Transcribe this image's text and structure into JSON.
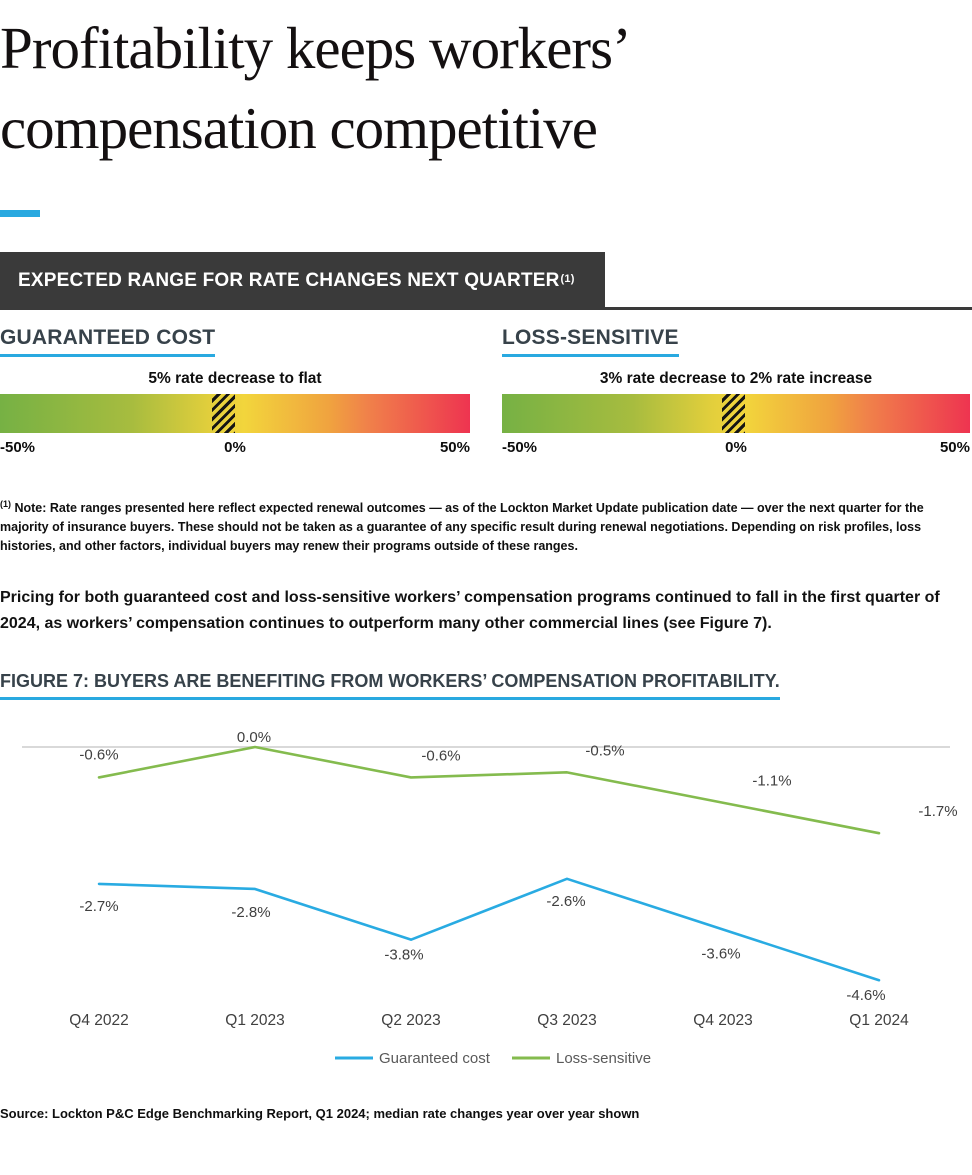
{
  "page": {
    "title": {
      "line1": "Profitability keeps workers’",
      "line2": "compensation competitive"
    }
  },
  "rate_banner": {
    "label": "EXPECTED RANGE FOR RATE CHANGES NEXT QUARTER",
    "footnote_marker": "(1)"
  },
  "rate_sections": [
    {
      "heading": "GUARANTEED COST",
      "range_label": "5% rate decrease to flat",
      "range_min_pct": -5,
      "range_max_pct": 0,
      "scale": [
        "-50%",
        "0%",
        "50%"
      ]
    },
    {
      "heading": "LOSS-SENSITIVE",
      "range_label": "3% rate decrease to 2% rate increase",
      "range_min_pct": -3,
      "range_max_pct": 2,
      "scale": [
        "-50%",
        "0%",
        "50%"
      ]
    }
  ],
  "note": {
    "marker": "(1)",
    "text": "Note: Rate ranges presented here reflect expected renewal outcomes — as of the Lockton Market Update publication date — over the next quarter for the majority of insurance buyers. These should not be taken as a guarantee of any specific result during renewal negotiations. Depending on risk profiles, loss histories, and other factors, individual buyers may renew their programs outside of these ranges."
  },
  "paragraph": "Pricing for both guaranteed cost and loss-sensitive workers’ compensation programs continued to fall in the first quarter of 2024, as workers’ compensation continues to outperform many other commercial lines (see Figure 7).",
  "figure_heading": "FIGURE 7: BUYERS ARE BENEFITING FROM WORKERS’ COMPENSATION PROFITABILITY.",
  "chart_data": {
    "type": "line",
    "categories": [
      "Q4 2022",
      "Q1 2023",
      "Q2 2023",
      "Q3 2023",
      "Q4 2023",
      "Q1 2024"
    ],
    "series": [
      {
        "name": "Guaranteed cost",
        "color": "#29abe2",
        "values": [
          -2.7,
          -2.8,
          -3.8,
          -2.6,
          -3.6,
          -4.6
        ],
        "labels": [
          "-2.7%",
          "-2.8%",
          "-3.8%",
          "-2.6%",
          "-3.6%",
          "-4.6%"
        ]
      },
      {
        "name": "Loss-sensitive",
        "color": "#84bb4e",
        "values": [
          -0.6,
          0.0,
          -0.6,
          -0.5,
          -1.1,
          -1.7
        ],
        "labels": [
          "-0.6%",
          "0.0%",
          "-0.6%",
          "-0.5%",
          "-1.1%",
          "-1.7%"
        ]
      }
    ],
    "ylim": [
      -5,
      0.5
    ],
    "gridline_at": 0,
    "grid": "single-zero-line",
    "gridline_color": "#d9d9d9",
    "label_color": "#404040",
    "legend_text_color": "#595959",
    "legend_position": "bottom",
    "xlabel": "",
    "ylabel": "",
    "title": ""
  },
  "source": "Source: Lockton P&C Edge Benchmarking Report, Q1 2024; median rate changes year over year shown",
  "colors": {
    "accent_blue": "#29a9e0",
    "banner_bg": "#3a3a3a",
    "heading_slate": "#37424a",
    "gradient_green": "#76b144",
    "gradient_yellow": "#f2d53c",
    "gradient_red": "#ee3450"
  }
}
